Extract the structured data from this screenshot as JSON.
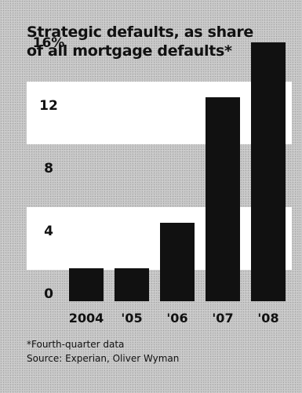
{
  "title_lines": [
    "Strategic defaults, as share",
    "of all mortgage defaults*"
  ],
  "footnote": "*Fourth-quarter data",
  "source": "Source: Experian, Oliver Wyman",
  "colors": {
    "background": "#c8c8c8",
    "band": "#ffffff",
    "bar": "#111111",
    "text": "#111111"
  },
  "chart_data": {
    "type": "bar",
    "title": "Strategic defaults, as share of all mortgage defaults*",
    "categories": [
      "2004",
      "'05",
      "'06",
      "'07",
      "'08"
    ],
    "values": [
      2.1,
      2.1,
      5.0,
      13.0,
      16.5
    ],
    "y_ticks": [
      0,
      4,
      8,
      12,
      16
    ],
    "y_tick_labels": [
      "0",
      "4",
      "8",
      "12",
      "16%"
    ],
    "ylim": [
      0,
      18
    ],
    "grid": "alternating white bands",
    "legend": "none",
    "xlabel": "",
    "ylabel": ""
  }
}
